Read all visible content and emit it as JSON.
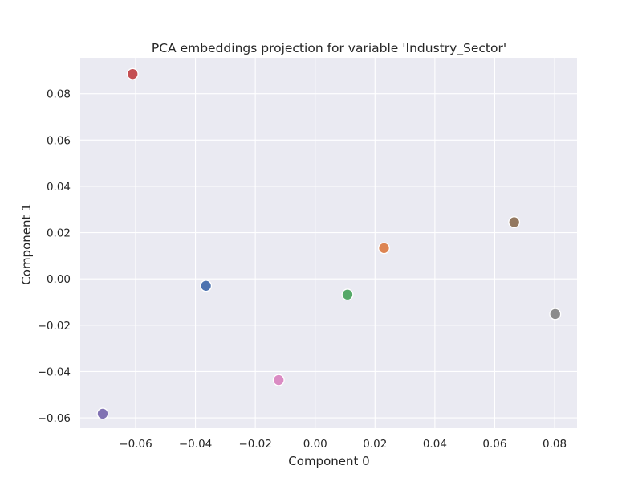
{
  "chart_data": {
    "type": "scatter",
    "title": "PCA embeddings projection for variable 'Industry_Sector'",
    "xlabel": "Component 0",
    "ylabel": "Component 1",
    "xlim": [
      -0.0785,
      0.0875
    ],
    "ylim": [
      -0.0645,
      0.0955
    ],
    "x_ticks": [
      -0.06,
      -0.04,
      -0.02,
      0.0,
      0.02,
      0.04,
      0.06,
      0.08
    ],
    "x_tick_labels": [
      "−0.06",
      "−0.04",
      "−0.02",
      "0.00",
      "0.02",
      "0.04",
      "0.06",
      "0.08"
    ],
    "y_ticks": [
      -0.06,
      -0.04,
      -0.02,
      0.0,
      0.02,
      0.04,
      0.06,
      0.08
    ],
    "y_tick_labels": [
      "−0.06",
      "−0.04",
      "−0.02",
      "0.00",
      "0.02",
      "0.04",
      "0.06",
      "0.08"
    ],
    "grid": true,
    "background": "#eaeaf2",
    "points": [
      {
        "x": -0.0365,
        "y": -0.003,
        "color": "#4c72b0"
      },
      {
        "x": 0.023,
        "y": 0.0133,
        "color": "#dd8452"
      },
      {
        "x": 0.0108,
        "y": -0.0068,
        "color": "#55a868"
      },
      {
        "x": -0.061,
        "y": 0.0885,
        "color": "#c44e52"
      },
      {
        "x": -0.071,
        "y": -0.0582,
        "color": "#8172b3"
      },
      {
        "x": 0.0665,
        "y": 0.0245,
        "color": "#937860"
      },
      {
        "x": -0.0122,
        "y": -0.0437,
        "color": "#da8bc3"
      },
      {
        "x": 0.0802,
        "y": -0.0152,
        "color": "#8c8c8c"
      }
    ]
  }
}
